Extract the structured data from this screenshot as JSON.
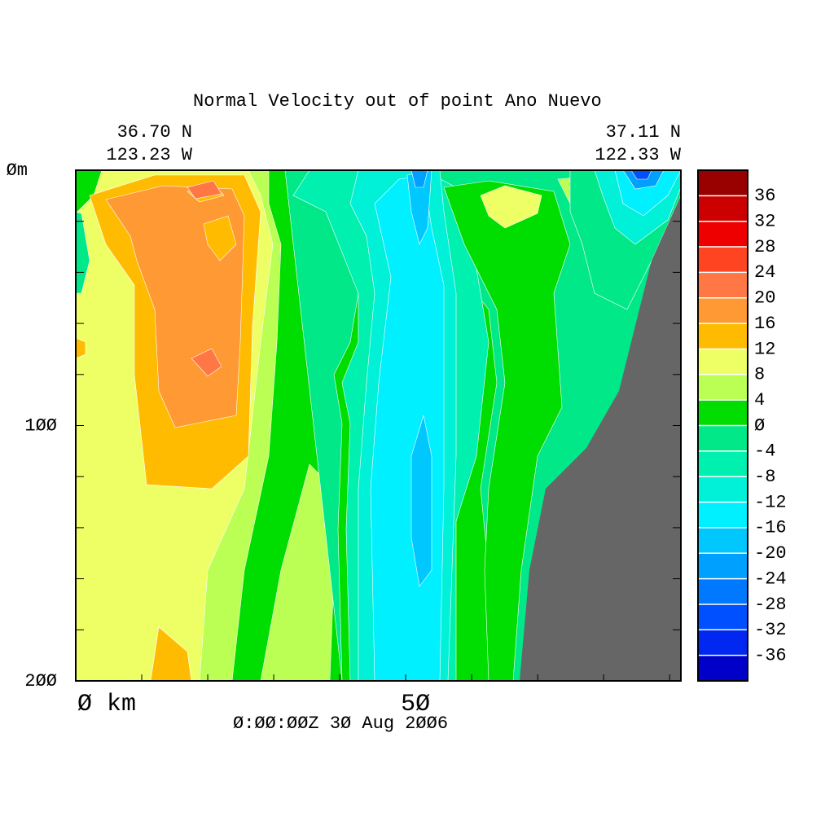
{
  "chart_data": {
    "type": "contour",
    "title": "Normal Velocity out of point Ano Nuevo",
    "left_lat": "36.70 N",
    "left_lon": "123.23 W",
    "right_lat": "37.11 N",
    "right_lon": "122.33 W",
    "time": "Ø:ØØ:ØØZ  3Ø Aug 2ØØ6",
    "xlim": [
      0,
      91.7
    ],
    "xticks": [
      {
        "value": 0,
        "label": "Ø km"
      },
      {
        "value": 50,
        "label": "5Ø"
      }
    ],
    "xminor_ticks": [
      10,
      20,
      30,
      40,
      60,
      70,
      80,
      90
    ],
    "ylim": [
      0,
      200
    ],
    "yticks": [
      {
        "value": 0,
        "label": "Øm"
      },
      {
        "value": 100,
        "label": "1ØØ"
      },
      {
        "value": 200,
        "label": "2ØØ"
      }
    ],
    "yminor_ticks": [
      20,
      40,
      60,
      80,
      120,
      140,
      160,
      180
    ],
    "clim": [
      -40,
      40
    ],
    "cticks": [
      -36,
      -32,
      -28,
      -24,
      -20,
      -16,
      -12,
      -8,
      -4,
      {
        "value": 0,
        "label": "Ø"
      },
      4,
      8,
      12,
      16,
      20,
      24,
      28,
      32,
      36
    ],
    "colors": [
      "#0000c8",
      "#0028f0",
      "#0050ff",
      "#0078ff",
      "#00a0ff",
      "#00c8ff",
      "#00f0ff",
      "#00f0d8",
      "#00f0b0",
      "#00e888",
      "#00dd00",
      "#bbff55",
      "#eeff66",
      "#ffbb00",
      "#ff9933",
      "#ff7744",
      "#ff4422",
      "#ee0000",
      "#cc0000",
      "#990000"
    ]
  }
}
